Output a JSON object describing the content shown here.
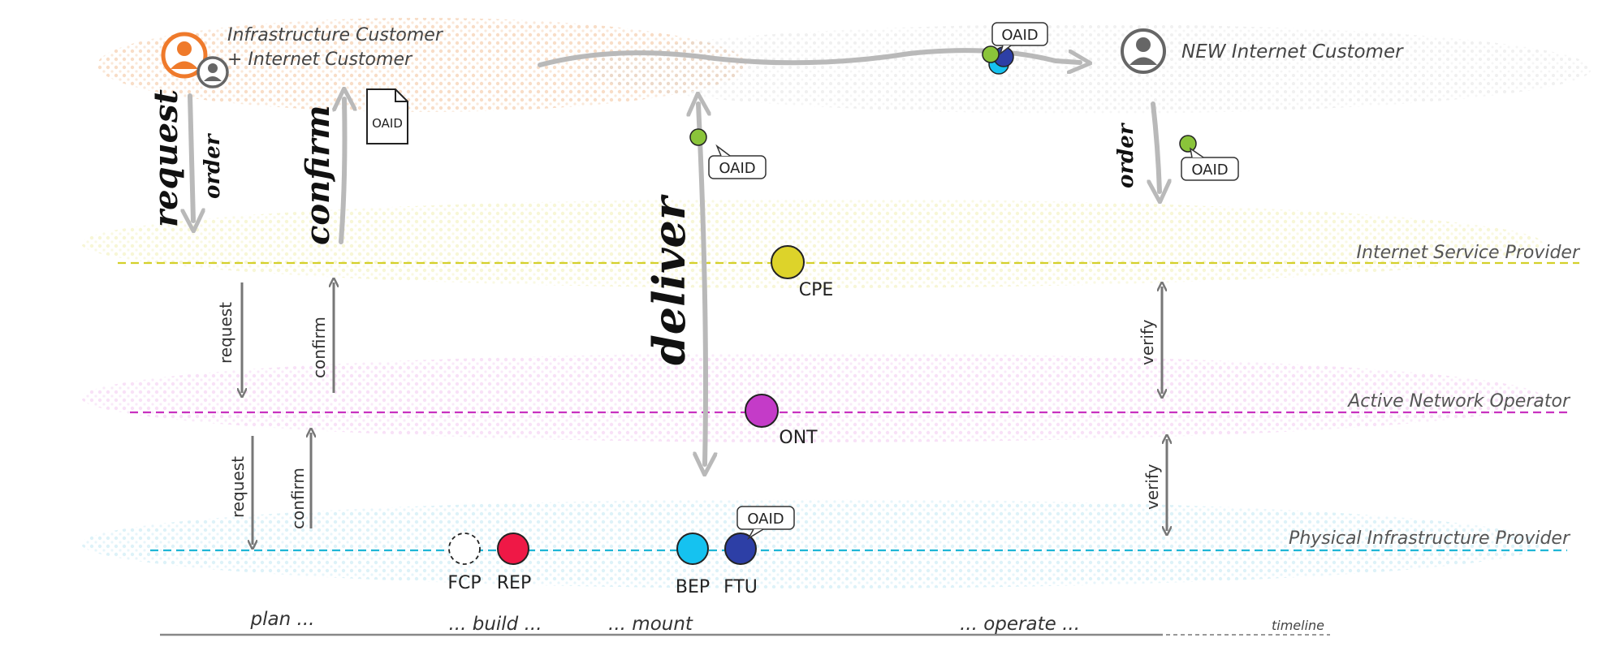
{
  "actors": {
    "infra_customer_line1": "Infrastructure Customer",
    "infra_customer_line2": "+ Internet Customer",
    "new_customer": "NEW Internet Customer"
  },
  "lanes": {
    "isp": "Internet Service Provider",
    "ano": "Active Network Operator",
    "pip": "Physical Infrastructure Provider"
  },
  "arrows": {
    "request_big": "request",
    "order_left": "order",
    "confirm_big": "confirm",
    "deliver": "deliver",
    "order_right": "order",
    "request_isp": "request",
    "confirm_isp": "confirm",
    "request_ano": "request",
    "confirm_ano": "confirm",
    "verify_isp": "verify",
    "verify_ano": "verify"
  },
  "tags": {
    "oaid_doc": "OAID",
    "oaid_deliver": "OAID",
    "oaid_top": "OAID",
    "oaid_order": "OAID",
    "oaid_ftu": "OAID"
  },
  "nodes": {
    "cpe": "CPE",
    "ont": "ONT",
    "fcp": "FCP",
    "rep": "REP",
    "bep": "BEP",
    "ftu": "FTU"
  },
  "timeline": {
    "plan": "plan ...",
    "build": "... build ...",
    "mount": "... mount",
    "operate": "... operate ...",
    "label": "timeline"
  },
  "colors": {
    "isp": "#d4d02a",
    "ano": "#c832c0",
    "pip": "#1fb6d6",
    "cpe": "#ddd32a",
    "ont": "#c43bc8",
    "rep": "#ef1846",
    "bep": "#15c2f0",
    "ftu": "#2d3fa6",
    "oaid_dot": "#8ac43a",
    "customer_orange": "#ef7a2b",
    "arrow_gray": "#777777"
  }
}
